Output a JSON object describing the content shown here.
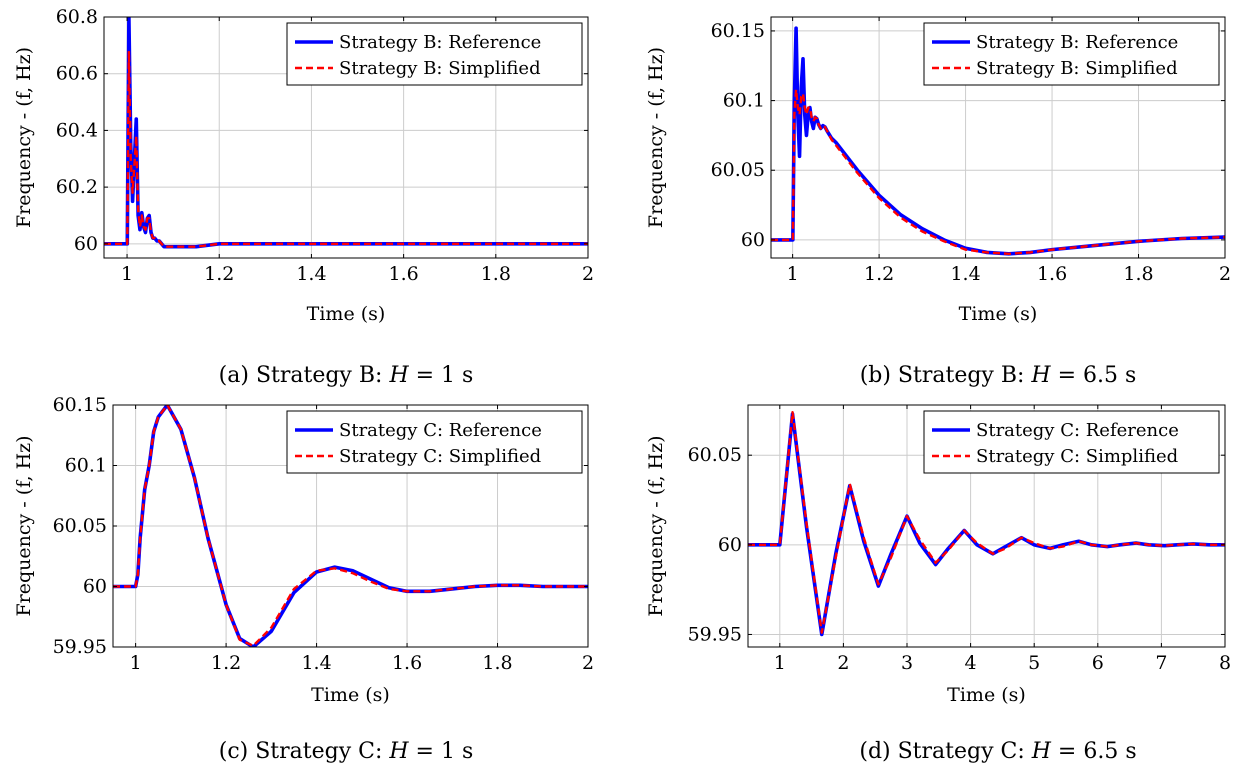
{
  "chart_data": [
    {
      "type": "line",
      "caption": "(a) Strategy B: H = 1 s",
      "caption_prefix": "(a) Strategy B: ",
      "caption_var": "H",
      "caption_rest": " = 1 s",
      "xlabel": "Time (s)",
      "ylabel": "Frequency - (f, Hz)",
      "xlim": [
        0.95,
        2
      ],
      "ylim": [
        59.95,
        60.8
      ],
      "xticks": [
        1,
        1.2,
        1.4,
        1.6,
        1.8,
        2
      ],
      "yticks": [
        60,
        60.2,
        60.4,
        60.6,
        60.8
      ],
      "grid": true,
      "legend_position": "top-right",
      "series": [
        {
          "name": "Strategy B: Reference",
          "color": "#0000ff",
          "style": "solid",
          "x": [
            0.95,
            1.0,
            1.0005,
            1.004,
            1.008,
            1.012,
            1.016,
            1.02,
            1.024,
            1.028,
            1.032,
            1.036,
            1.04,
            1.044,
            1.048,
            1.052,
            1.056,
            1.06,
            1.065,
            1.07,
            1.075,
            1.08,
            1.09,
            1.1,
            1.12,
            1.15,
            1.2,
            1.4,
            1.6,
            1.8,
            2.0
          ],
          "y": [
            60.0,
            60.0,
            60.0,
            60.8,
            60.35,
            60.15,
            60.3,
            60.44,
            60.1,
            60.05,
            60.11,
            60.06,
            60.04,
            60.09,
            60.1,
            60.04,
            60.02,
            60.02,
            60.01,
            60.01,
            60.0,
            59.99,
            59.99,
            59.99,
            59.99,
            59.99,
            60.0,
            60.0,
            60.0,
            60.0,
            60.0
          ]
        },
        {
          "name": "Strategy B: Simplified",
          "color": "#ff0000",
          "style": "dashed",
          "x": [
            0.95,
            1.0,
            1.0005,
            1.004,
            1.008,
            1.012,
            1.016,
            1.02,
            1.024,
            1.028,
            1.032,
            1.036,
            1.04,
            1.044,
            1.048,
            1.052,
            1.056,
            1.06,
            1.065,
            1.07,
            1.075,
            1.08,
            1.09,
            1.1,
            1.12,
            1.15,
            1.2,
            1.4,
            1.6,
            1.8,
            2.0
          ],
          "y": [
            60.0,
            60.0,
            60.0,
            60.68,
            60.3,
            60.18,
            60.28,
            60.38,
            60.12,
            60.06,
            60.1,
            60.06,
            60.05,
            60.09,
            60.09,
            60.04,
            60.02,
            60.02,
            60.01,
            60.01,
            60.0,
            59.99,
            59.99,
            59.99,
            59.99,
            59.99,
            60.0,
            60.0,
            60.0,
            60.0,
            60.0
          ]
        }
      ]
    },
    {
      "type": "line",
      "caption": "(b) Strategy B: H = 6.5 s",
      "caption_prefix": "(b) Strategy B: ",
      "caption_var": "H",
      "caption_rest": " = 6.5 s",
      "xlabel": "Time (s)",
      "ylabel": "Frequency - (f, Hz)",
      "xlim": [
        0.95,
        2
      ],
      "ylim": [
        59.987,
        60.16
      ],
      "xticks": [
        1,
        1.2,
        1.4,
        1.6,
        1.8,
        2
      ],
      "yticks": [
        60,
        60.05,
        60.1,
        60.15
      ],
      "grid": true,
      "legend_position": "top-right",
      "series": [
        {
          "name": "Strategy B: Reference",
          "color": "#0000ff",
          "style": "solid",
          "x": [
            0.95,
            1.0,
            1.0005,
            1.004,
            1.008,
            1.012,
            1.016,
            1.02,
            1.024,
            1.028,
            1.032,
            1.036,
            1.04,
            1.044,
            1.048,
            1.052,
            1.056,
            1.06,
            1.065,
            1.07,
            1.075,
            1.08,
            1.09,
            1.1,
            1.15,
            1.2,
            1.25,
            1.3,
            1.35,
            1.4,
            1.45,
            1.5,
            1.55,
            1.6,
            1.7,
            1.8,
            1.9,
            2.0
          ],
          "y": [
            60.0,
            60.0,
            60.0,
            60.1,
            60.152,
            60.09,
            60.06,
            60.11,
            60.13,
            60.09,
            60.075,
            60.09,
            60.095,
            60.085,
            60.08,
            60.088,
            60.087,
            60.083,
            60.08,
            60.082,
            60.081,
            60.078,
            60.073,
            60.07,
            60.05,
            60.032,
            60.018,
            60.008,
            60.0,
            59.994,
            59.991,
            59.99,
            59.991,
            59.993,
            59.996,
            59.999,
            60.001,
            60.002
          ]
        },
        {
          "name": "Strategy B: Simplified",
          "color": "#ff0000",
          "style": "dashed",
          "x": [
            0.95,
            1.0,
            1.0005,
            1.004,
            1.008,
            1.012,
            1.016,
            1.02,
            1.024,
            1.028,
            1.032,
            1.036,
            1.04,
            1.044,
            1.048,
            1.052,
            1.056,
            1.06,
            1.065,
            1.07,
            1.075,
            1.08,
            1.09,
            1.1,
            1.15,
            1.2,
            1.25,
            1.3,
            1.35,
            1.4,
            1.45,
            1.5,
            1.55,
            1.6,
            1.7,
            1.8,
            1.9,
            2.0
          ],
          "y": [
            60.0,
            60.0,
            60.0,
            60.09,
            60.108,
            60.095,
            60.09,
            60.103,
            60.105,
            60.095,
            60.09,
            60.095,
            60.095,
            60.088,
            60.085,
            60.088,
            60.087,
            60.083,
            60.08,
            60.082,
            60.081,
            60.078,
            60.072,
            60.068,
            60.048,
            60.03,
            60.016,
            60.006,
            59.999,
            59.993,
            59.991,
            59.99,
            59.991,
            59.993,
            59.996,
            59.999,
            60.001,
            60.002
          ]
        }
      ]
    },
    {
      "type": "line",
      "caption": "(c) Strategy C: H = 1 s",
      "caption_prefix": "(c) Strategy C: ",
      "caption_var": "H",
      "caption_rest": " = 1 s",
      "xlabel": "Time (s)",
      "ylabel": "Frequency - (f, Hz)",
      "xlim": [
        0.95,
        2
      ],
      "ylim": [
        59.95,
        60.15
      ],
      "xticks": [
        1,
        1.2,
        1.4,
        1.6,
        1.8,
        2
      ],
      "yticks": [
        59.95,
        60,
        60.05,
        60.1,
        60.15
      ],
      "grid": true,
      "legend_position": "top-right",
      "series": [
        {
          "name": "Strategy C: Reference",
          "color": "#0000ff",
          "style": "solid",
          "x": [
            0.95,
            1.0,
            1.005,
            1.01,
            1.02,
            1.03,
            1.04,
            1.05,
            1.07,
            1.1,
            1.13,
            1.16,
            1.2,
            1.23,
            1.26,
            1.3,
            1.35,
            1.4,
            1.44,
            1.48,
            1.52,
            1.56,
            1.6,
            1.65,
            1.7,
            1.75,
            1.8,
            1.85,
            1.9,
            1.95,
            2.0
          ],
          "y": [
            60.0,
            60.0,
            60.01,
            60.04,
            60.08,
            60.1,
            60.128,
            60.14,
            60.15,
            60.13,
            60.09,
            60.04,
            59.985,
            59.957,
            59.95,
            59.963,
            59.995,
            60.012,
            60.016,
            60.013,
            60.006,
            59.999,
            59.996,
            59.996,
            59.998,
            60.0,
            60.001,
            60.001,
            60.0,
            60.0,
            60.0
          ]
        },
        {
          "name": "Strategy C: Simplified",
          "color": "#ff0000",
          "style": "dashed",
          "x": [
            0.95,
            1.0,
            1.005,
            1.01,
            1.02,
            1.03,
            1.04,
            1.05,
            1.07,
            1.1,
            1.13,
            1.16,
            1.2,
            1.23,
            1.26,
            1.3,
            1.35,
            1.4,
            1.44,
            1.48,
            1.52,
            1.56,
            1.6,
            1.65,
            1.7,
            1.75,
            1.8,
            1.85,
            1.9,
            1.95,
            2.0
          ],
          "y": [
            60.0,
            60.0,
            60.01,
            60.04,
            60.08,
            60.1,
            60.128,
            60.14,
            60.15,
            60.13,
            60.09,
            60.04,
            59.985,
            59.956,
            59.951,
            59.966,
            59.998,
            60.013,
            60.015,
            60.011,
            60.004,
            59.998,
            59.996,
            59.996,
            59.998,
            60.0,
            60.001,
            60.001,
            60.0,
            60.0,
            60.0
          ]
        }
      ]
    },
    {
      "type": "line",
      "caption": "(d) Strategy C: H = 6.5 s",
      "caption_prefix": "(d) Strategy C: ",
      "caption_var": "H",
      "caption_rest": " = 6.5 s",
      "xlabel": "Time (s)",
      "ylabel": "Frequency - (f, Hz)",
      "xlim": [
        0.5,
        8
      ],
      "ylim": [
        59.943,
        60.078
      ],
      "xticks": [
        1,
        2,
        3,
        4,
        5,
        6,
        7,
        8
      ],
      "yticks": [
        59.95,
        60,
        60.05
      ],
      "grid": true,
      "legend_position": "top-right",
      "series": [
        {
          "name": "Strategy C: Reference",
          "color": "#0000ff",
          "style": "solid",
          "x": [
            0.5,
            0.95,
            1.0,
            1.2,
            1.42,
            1.66,
            1.88,
            2.1,
            2.32,
            2.55,
            2.75,
            3.0,
            3.2,
            3.45,
            3.65,
            3.9,
            4.1,
            4.35,
            4.55,
            4.8,
            5.0,
            5.25,
            5.45,
            5.7,
            5.9,
            6.15,
            6.35,
            6.6,
            6.8,
            7.05,
            7.25,
            7.5,
            7.75,
            8.0
          ],
          "y": [
            60.0,
            60.0,
            60.0,
            60.073,
            60.01,
            59.95,
            59.995,
            60.033,
            60.002,
            59.977,
            59.995,
            60.016,
            60.001,
            59.989,
            59.998,
            60.008,
            60.0,
            59.995,
            59.999,
            60.004,
            60.0,
            59.998,
            60.0,
            60.002,
            60.0,
            59.999,
            60.0,
            60.001,
            60.0,
            59.9995,
            60.0,
            60.0005,
            60.0,
            60.0
          ]
        },
        {
          "name": "Strategy C: Simplified",
          "color": "#ff0000",
          "style": "dashed",
          "x": [
            0.5,
            0.95,
            1.0,
            1.2,
            1.42,
            1.66,
            1.88,
            2.1,
            2.32,
            2.55,
            2.75,
            3.0,
            3.2,
            3.45,
            3.65,
            3.9,
            4.1,
            4.35,
            4.55,
            4.8,
            5.0,
            5.25,
            5.45,
            5.7,
            5.9,
            6.15,
            6.35,
            6.6,
            6.8,
            7.05,
            7.25,
            7.5,
            7.75,
            8.0
          ],
          "y": [
            60.0,
            60.0,
            60.0,
            60.074,
            60.012,
            59.951,
            59.993,
            60.034,
            60.004,
            59.978,
            59.993,
            60.016,
            60.003,
            59.99,
            59.997,
            60.008,
            60.001,
            59.995,
            59.998,
            60.004,
            60.001,
            59.998,
            59.999,
            60.002,
            60.0,
            59.999,
            60.0,
            60.001,
            60.0,
            59.9995,
            60.0,
            60.0005,
            60.0,
            60.0
          ]
        }
      ]
    }
  ]
}
